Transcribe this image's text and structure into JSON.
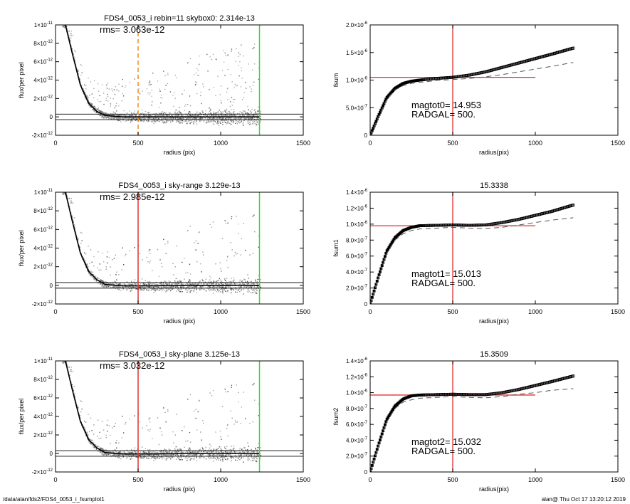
{
  "footer": {
    "left": "/data/alan/fds2/FDS4_0053_i_fsumplot1",
    "right": "alan@  Thu Oct 17 13:20:12 2019"
  },
  "colors": {
    "points": "#a0a0a0",
    "dark_points": "#555555",
    "profile": "#000000",
    "red": "#e03030",
    "green": "#33dd33",
    "orange": "#f08c1e",
    "dash": "#555555"
  },
  "chart_data": [
    {
      "type": "scatter",
      "title": "FDS4_0053_i rebin=11    skybox0:  2.314e-13",
      "annotations": [
        "rms= 3.063e-12"
      ],
      "xlabel": "radius (pix)",
      "ylabel": "flux/per pixel",
      "xlim": [
        0,
        1500
      ],
      "ylim": [
        -2e-12,
        1e-11
      ],
      "xticks": [
        0,
        500,
        1000,
        1500
      ],
      "xtick_labels": [
        "0",
        "500",
        "1000",
        "1500"
      ],
      "yticks": [
        -2e-12,
        0,
        2e-12,
        4e-12,
        6e-12,
        8e-12,
        1e-11
      ],
      "ytick_labels": [
        [
          "-2×10",
          "-12"
        ],
        [
          "0",
          ""
        ],
        [
          "2×10",
          "-12"
        ],
        [
          "4×10",
          "-12"
        ],
        [
          "6×10",
          "-12"
        ],
        [
          "8×10",
          "-12"
        ],
        [
          "1×10",
          "-11"
        ]
      ],
      "hlines": [
        3e-13,
        -3e-13
      ],
      "vlines": [
        {
          "x": 500,
          "color": "orange",
          "dashed": true
        },
        {
          "x": 1235,
          "color": "green",
          "dashed": false
        }
      ],
      "profile": {
        "x": [
          60,
          100,
          150,
          200,
          250,
          300,
          400,
          600,
          800,
          1000,
          1200,
          1240
        ],
        "y": [
          1e-11,
          7e-12,
          3.5e-12,
          1.5e-12,
          6e-13,
          1.5e-13,
          0,
          0,
          0,
          0,
          0,
          0
        ]
      }
    },
    {
      "type": "line",
      "title": "",
      "annotations": [
        "magtot0=  14.953",
        "RADGAL=    500."
      ],
      "xlabel": "radius(pix)",
      "ylabel": "fsum",
      "xlim": [
        0,
        1500
      ],
      "ylim": [
        0,
        2e-06
      ],
      "xticks": [
        0,
        500,
        1000,
        1500
      ],
      "xtick_labels": [
        "0",
        "500",
        "1000",
        "1500"
      ],
      "yticks": [
        0,
        5e-07,
        1e-06,
        1.5e-06,
        2e-06
      ],
      "ytick_labels": [
        [
          "0",
          ""
        ],
        [
          "5.0×10",
          "-7"
        ],
        [
          "1.0×10",
          "-6"
        ],
        [
          "1.5×10",
          "-6"
        ],
        [
          "2.0×10",
          "-6"
        ]
      ],
      "hline": {
        "y": 1.05e-06,
        "x": [
          0,
          1000
        ]
      },
      "vline_x": 500,
      "series": [
        {
          "style": "squares",
          "x": [
            0,
            50,
            100,
            150,
            200,
            250,
            300,
            400,
            500,
            600,
            700,
            800,
            900,
            1000,
            1100,
            1230
          ],
          "y": [
            0,
            3.5e-07,
            6.8e-07,
            8.5e-07,
            9.4e-07,
            9.8e-07,
            1e-06,
            1.03e-06,
            1.05e-06,
            1.09e-06,
            1.15e-06,
            1.23e-06,
            1.31e-06,
            1.39e-06,
            1.47e-06,
            1.58e-06
          ]
        },
        {
          "style": "dashed",
          "x": [
            0,
            50,
            100,
            150,
            200,
            250,
            300,
            400,
            500,
            600,
            700,
            800,
            900,
            1000,
            1100,
            1230
          ],
          "y": [
            0,
            3.3e-07,
            6.5e-07,
            8.2e-07,
            9e-07,
            9.4e-07,
            9.6e-07,
            9.9e-07,
            1.01e-06,
            1.03e-06,
            1.06e-06,
            1.1e-06,
            1.15e-06,
            1.2e-06,
            1.25e-06,
            1.32e-06
          ]
        }
      ]
    },
    {
      "type": "scatter",
      "title": "FDS4_0053_i sky-range  3.129e-13",
      "annotations": [
        "rms= 2.985e-12"
      ],
      "xlabel": "radius (pix)",
      "ylabel": "flux/per pixel",
      "xlim": [
        0,
        1500
      ],
      "ylim": [
        -2e-12,
        1e-11
      ],
      "xticks": [
        0,
        500,
        1000,
        1500
      ],
      "xtick_labels": [
        "0",
        "500",
        "1000",
        "1500"
      ],
      "yticks": [
        -2e-12,
        0,
        2e-12,
        4e-12,
        6e-12,
        8e-12,
        1e-11
      ],
      "ytick_labels": [
        [
          "-2×10",
          "-12"
        ],
        [
          "0",
          ""
        ],
        [
          "2×10",
          "-12"
        ],
        [
          "4×10",
          "-12"
        ],
        [
          "6×10",
          "-12"
        ],
        [
          "8×10",
          "-12"
        ],
        [
          "1×10",
          "-11"
        ]
      ],
      "hlines": [
        3e-13,
        -3e-13
      ],
      "vlines": [
        {
          "x": 500,
          "color": "red",
          "dashed": false
        },
        {
          "x": 1235,
          "color": "green",
          "dashed": false
        }
      ],
      "profile": {
        "x": [
          60,
          100,
          150,
          200,
          250,
          300,
          400,
          600,
          800,
          1000,
          1200,
          1240
        ],
        "y": [
          1e-11,
          7e-12,
          3.5e-12,
          1.5e-12,
          6e-13,
          1e-13,
          -5e-14,
          -5e-14,
          0,
          0,
          0,
          0
        ]
      }
    },
    {
      "type": "line",
      "title": "15.3338",
      "annotations": [
        "magtot1=  15.013",
        "RADGAL=    500."
      ],
      "xlabel": "radius(pix)",
      "ylabel": "fsum1",
      "xlim": [
        0,
        1500
      ],
      "ylim": [
        0,
        1.4e-06
      ],
      "xticks": [
        0,
        500,
        1000,
        1500
      ],
      "xtick_labels": [
        "0",
        "500",
        "1000",
        "1500"
      ],
      "yticks": [
        0,
        2e-07,
        4e-07,
        6e-07,
        8e-07,
        1e-06,
        1.2e-06,
        1.4e-06
      ],
      "ytick_labels": [
        [
          "0",
          ""
        ],
        [
          "2.0×10",
          "-7"
        ],
        [
          "4.0×10",
          "-7"
        ],
        [
          "6.0×10",
          "-7"
        ],
        [
          "8.0×10",
          "-7"
        ],
        [
          "1.0×10",
          "-6"
        ],
        [
          "1.2×10",
          "-6"
        ],
        [
          "1.4×10",
          "-6"
        ]
      ],
      "hline": {
        "y": 9.8e-07,
        "x": [
          0,
          1000
        ]
      },
      "vline_x": 500,
      "series": [
        {
          "style": "squares",
          "x": [
            0,
            50,
            100,
            150,
            200,
            250,
            300,
            400,
            500,
            600,
            700,
            800,
            900,
            1000,
            1100,
            1230
          ],
          "y": [
            0,
            3.4e-07,
            6.6e-07,
            8.3e-07,
            9.2e-07,
            9.6e-07,
            9.8e-07,
            9.85e-07,
            9.9e-07,
            9.85e-07,
            9.9e-07,
            1.02e-06,
            1.06e-06,
            1.11e-06,
            1.16e-06,
            1.24e-06
          ]
        },
        {
          "style": "dashed",
          "x": [
            0,
            50,
            100,
            150,
            200,
            250,
            300,
            400,
            500,
            600,
            700,
            800,
            900,
            1000,
            1100,
            1230
          ],
          "y": [
            0,
            3.2e-07,
            6.3e-07,
            8e-07,
            8.8e-07,
            9.2e-07,
            9.4e-07,
            9.5e-07,
            9.6e-07,
            9.5e-07,
            9.45e-07,
            9.6e-07,
            9.9e-07,
            1.02e-06,
            1.05e-06,
            1.08e-06
          ]
        }
      ]
    },
    {
      "type": "scatter",
      "title": "FDS4_0053_i sky-plane  3.125e-13",
      "annotations": [
        "rms= 3.032e-12"
      ],
      "xlabel": "radius (pix)",
      "ylabel": "flux/per pixel",
      "xlim": [
        0,
        1500
      ],
      "ylim": [
        -2e-12,
        1e-11
      ],
      "xticks": [
        0,
        500,
        1000,
        1500
      ],
      "xtick_labels": [
        "0",
        "500",
        "1000",
        "1500"
      ],
      "yticks": [
        -2e-12,
        0,
        2e-12,
        4e-12,
        6e-12,
        8e-12,
        1e-11
      ],
      "ytick_labels": [
        [
          "-2×10",
          "-12"
        ],
        [
          "0",
          ""
        ],
        [
          "2×10",
          "-12"
        ],
        [
          "4×10",
          "-12"
        ],
        [
          "6×10",
          "-12"
        ],
        [
          "8×10",
          "-12"
        ],
        [
          "1×10",
          "-11"
        ]
      ],
      "hlines": [
        3e-13,
        -3e-13
      ],
      "vlines": [
        {
          "x": 500,
          "color": "red",
          "dashed": false
        },
        {
          "x": 1235,
          "color": "green",
          "dashed": false
        }
      ],
      "profile": {
        "x": [
          60,
          100,
          150,
          200,
          250,
          300,
          400,
          600,
          800,
          1000,
          1200,
          1240
        ],
        "y": [
          1e-11,
          7e-12,
          3.5e-12,
          1.5e-12,
          6e-13,
          1e-13,
          -5e-14,
          -5e-14,
          0,
          0,
          0,
          0
        ]
      }
    },
    {
      "type": "line",
      "title": "15.3509",
      "annotations": [
        "magtot2=  15.032",
        "RADGAL=    500."
      ],
      "xlabel": "radius(pix)",
      "ylabel": "fsum2",
      "xlim": [
        0,
        1500
      ],
      "ylim": [
        0,
        1.4e-06
      ],
      "xticks": [
        0,
        500,
        1000,
        1500
      ],
      "xtick_labels": [
        "0",
        "500",
        "1000",
        "1500"
      ],
      "yticks": [
        0,
        2e-07,
        4e-07,
        6e-07,
        8e-07,
        1e-06,
        1.2e-06,
        1.4e-06
      ],
      "ytick_labels": [
        [
          "0",
          ""
        ],
        [
          "2.0×10",
          "-7"
        ],
        [
          "4.0×10",
          "-7"
        ],
        [
          "6.0×10",
          "-7"
        ],
        [
          "8.0×10",
          "-7"
        ],
        [
          "1.0×10",
          "-6"
        ],
        [
          "1.2×10",
          "-6"
        ],
        [
          "1.4×10",
          "-6"
        ]
      ],
      "hline": {
        "y": 9.7e-07,
        "x": [
          0,
          1000
        ]
      },
      "vline_x": 500,
      "series": [
        {
          "style": "squares",
          "x": [
            0,
            50,
            100,
            150,
            200,
            250,
            300,
            400,
            500,
            600,
            700,
            800,
            900,
            1000,
            1100,
            1230
          ],
          "y": [
            0,
            3.4e-07,
            6.6e-07,
            8.3e-07,
            9.2e-07,
            9.6e-07,
            9.7e-07,
            9.75e-07,
            9.8e-07,
            9.75e-07,
            9.75e-07,
            1e-06,
            1.04e-06,
            1.09e-06,
            1.14e-06,
            1.21e-06
          ]
        },
        {
          "style": "dashed",
          "x": [
            0,
            50,
            100,
            150,
            200,
            250,
            300,
            400,
            500,
            600,
            700,
            800,
            900,
            1000,
            1100,
            1230
          ],
          "y": [
            0,
            3.2e-07,
            6.3e-07,
            8e-07,
            8.8e-07,
            9.1e-07,
            9.3e-07,
            9.4e-07,
            9.5e-07,
            9.4e-07,
            9.35e-07,
            9.5e-07,
            9.8e-07,
            1e-06,
            1.03e-06,
            1.05e-06
          ]
        }
      ]
    }
  ]
}
